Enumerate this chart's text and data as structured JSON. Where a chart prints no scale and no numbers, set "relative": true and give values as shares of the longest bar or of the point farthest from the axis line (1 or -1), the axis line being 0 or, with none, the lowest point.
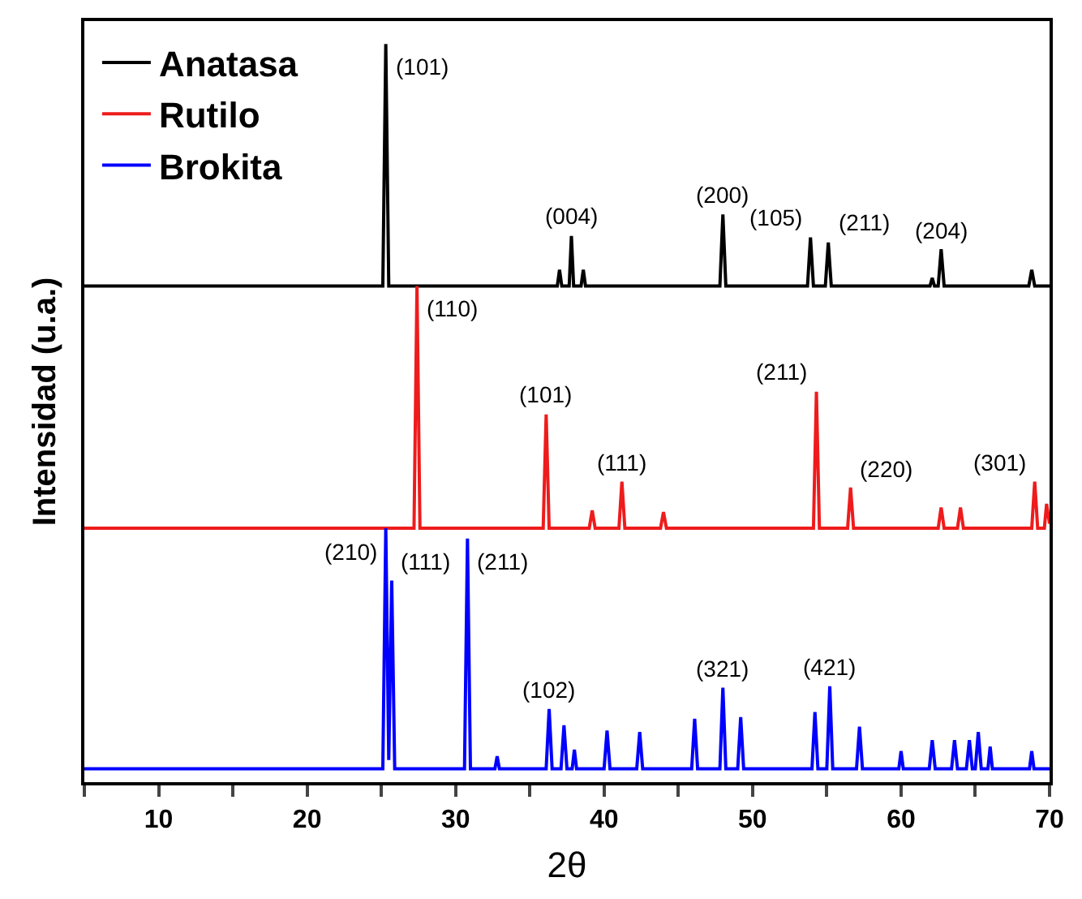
{
  "chart_data": {
    "type": "line",
    "relative": true,
    "xlabel": "2θ",
    "ylabel": "Intensidad (u.a.)",
    "xlim": [
      5,
      70
    ],
    "xticks": [
      {
        "value": 5,
        "label": null
      },
      10,
      {
        "value": 15,
        "label": null
      },
      20,
      {
        "value": 25,
        "label": null
      },
      30,
      {
        "value": 35,
        "label": null
      },
      40,
      {
        "value": 45,
        "label": null
      },
      50,
      {
        "value": 55,
        "label": null
      },
      60,
      {
        "value": 65,
        "label": null
      },
      70
    ],
    "legend": "top left",
    "marker": "none",
    "line_style": "solid",
    "series": [
      {
        "name": "Anatasa",
        "color": "#000000",
        "x": [
          5,
          25.1,
          25.3,
          25.5,
          36.85,
          37.0,
          37.15,
          37.65,
          37.8,
          37.95,
          38.45,
          38.6,
          38.75,
          47.8,
          48.0,
          48.2,
          53.7,
          53.9,
          54.1,
          54.9,
          55.1,
          55.3,
          61.95,
          62.1,
          62.25,
          62.5,
          62.7,
          62.9,
          68.6,
          68.8,
          69.0,
          70
        ],
        "values": [
          0.672,
          0.672,
          1.0,
          0.672,
          0.672,
          0.694,
          0.672,
          0.672,
          0.74,
          0.672,
          0.672,
          0.694,
          0.672,
          0.672,
          0.769,
          0.672,
          0.672,
          0.738,
          0.672,
          0.672,
          0.731,
          0.672,
          0.672,
          0.683,
          0.672,
          0.672,
          0.722,
          0.672,
          0.672,
          0.694,
          0.672,
          0.672
        ]
      },
      {
        "name": "Rutilo",
        "color": "#ee1c1c",
        "x": [
          5,
          27.2,
          27.4,
          27.6,
          35.9,
          36.1,
          36.3,
          39.0,
          39.2,
          39.4,
          41.0,
          41.2,
          41.4,
          43.8,
          44.0,
          44.2,
          54.1,
          54.3,
          54.5,
          56.4,
          56.6,
          56.8,
          62.5,
          62.7,
          62.9,
          63.8,
          64.0,
          64.2,
          68.8,
          69.0,
          69.2,
          69.65,
          69.8,
          70
        ],
        "values": [
          0.344,
          0.344,
          0.672,
          0.344,
          0.344,
          0.498,
          0.344,
          0.344,
          0.368,
          0.344,
          0.344,
          0.407,
          0.344,
          0.344,
          0.366,
          0.344,
          0.344,
          0.529,
          0.344,
          0.344,
          0.399,
          0.344,
          0.344,
          0.372,
          0.344,
          0.344,
          0.372,
          0.344,
          0.344,
          0.407,
          0.344,
          0.344,
          0.377,
          0.35
        ]
      },
      {
        "name": "Brokita",
        "color": "#0000ff",
        "x": [
          5,
          25.1,
          25.3,
          25.5,
          25.7,
          25.9,
          30.6,
          30.8,
          31.0,
          32.65,
          32.8,
          32.95,
          36.1,
          36.3,
          36.5,
          37.1,
          37.3,
          37.5,
          37.85,
          38.0,
          38.15,
          40.0,
          40.2,
          40.4,
          42.2,
          42.4,
          42.6,
          45.9,
          46.1,
          46.3,
          47.8,
          48.0,
          48.2,
          49.0,
          49.2,
          49.4,
          54.0,
          54.2,
          54.4,
          55.0,
          55.2,
          55.4,
          57.0,
          57.2,
          57.4,
          59.85,
          60.0,
          60.15,
          61.9,
          62.1,
          62.3,
          63.4,
          63.6,
          63.8,
          64.4,
          64.6,
          64.8,
          65.0,
          65.2,
          65.4,
          65.85,
          66.0,
          66.15,
          68.65,
          68.8,
          68.95,
          70
        ],
        "values": [
          0.018,
          0.018,
          0.344,
          0.03,
          0.273,
          0.018,
          0.018,
          0.33,
          0.018,
          0.018,
          0.035,
          0.018,
          0.018,
          0.099,
          0.018,
          0.018,
          0.077,
          0.018,
          0.018,
          0.044,
          0.018,
          0.018,
          0.07,
          0.018,
          0.018,
          0.068,
          0.018,
          0.018,
          0.086,
          0.018,
          0.018,
          0.128,
          0.018,
          0.018,
          0.088,
          0.018,
          0.018,
          0.095,
          0.018,
          0.018,
          0.13,
          0.018,
          0.018,
          0.075,
          0.018,
          0.018,
          0.042,
          0.018,
          0.018,
          0.057,
          0.018,
          0.018,
          0.057,
          0.018,
          0.018,
          0.057,
          0.018,
          0.018,
          0.068,
          0.018,
          0.018,
          0.048,
          0.018,
          0.018,
          0.042,
          0.018,
          0.018
        ]
      }
    ],
    "annotations": [
      {
        "text": "(101)",
        "x": 25.3,
        "y": 1.0
      },
      {
        "text": "(004)",
        "x": 37.8,
        "y": 0.74
      },
      {
        "text": "(200)",
        "x": 48.0,
        "y": 0.769
      },
      {
        "text": "(105)",
        "x": 53.9,
        "y": 0.738
      },
      {
        "text": "(211)",
        "x": 55.1,
        "y": 0.731
      },
      {
        "text": "(204)",
        "x": 62.7,
        "y": 0.722
      },
      {
        "text": "(110)",
        "x": 27.4,
        "y": 0.672
      },
      {
        "text": "(101)",
        "x": 36.1,
        "y": 0.498
      },
      {
        "text": "(111)",
        "x": 41.2,
        "y": 0.407
      },
      {
        "text": "(211)",
        "x": 54.3,
        "y": 0.529
      },
      {
        "text": "(220)",
        "x": 56.6,
        "y": 0.399
      },
      {
        "text": "(301)",
        "x": 69.0,
        "y": 0.407
      },
      {
        "text": "(210)",
        "x": 25.3,
        "y": 0.344
      },
      {
        "text": "(111)",
        "x": 25.7,
        "y": 0.273
      },
      {
        "text": "(211)",
        "x": 30.8,
        "y": 0.33
      },
      {
        "text": "(102)",
        "x": 36.3,
        "y": 0.099
      },
      {
        "text": "(321)",
        "x": 48.0,
        "y": 0.128
      },
      {
        "text": "(421)",
        "x": 55.2,
        "y": 0.13
      }
    ]
  }
}
